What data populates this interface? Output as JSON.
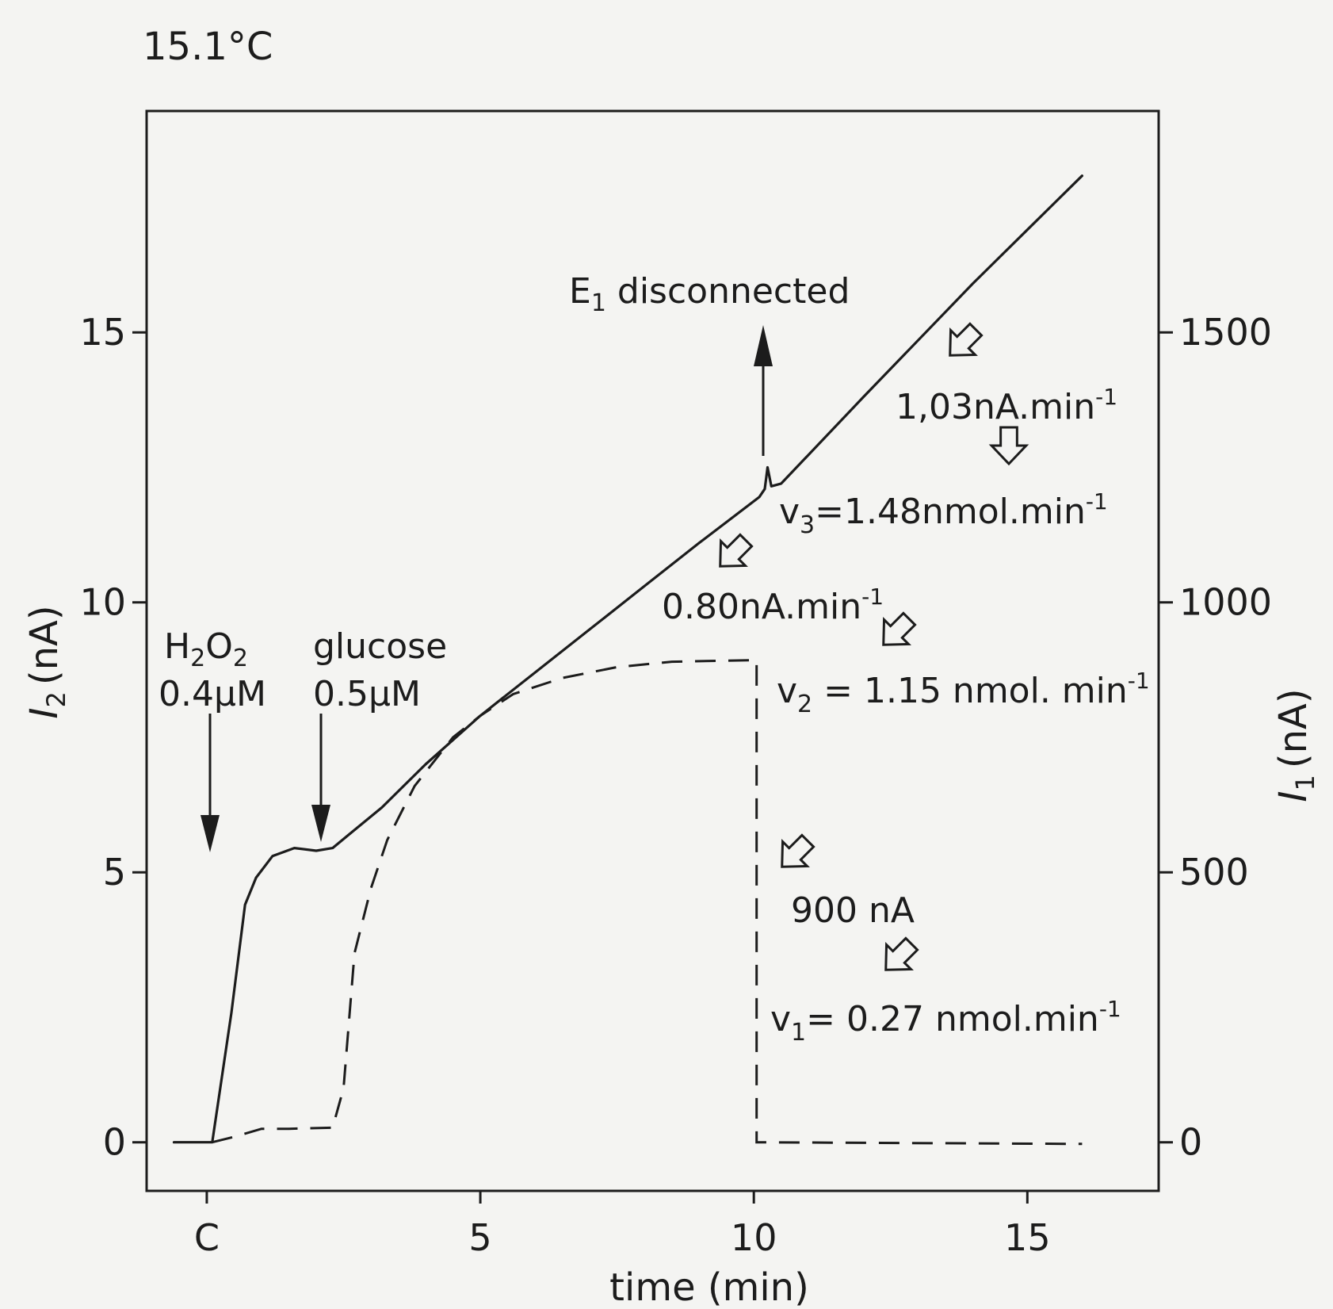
{
  "chart_data": {
    "type": "line",
    "temperature_label": "15.1°C",
    "xlabel": "time (min)",
    "ylabel_left": {
      "symbol": "I",
      "sub": "2",
      "unit": "(nA)"
    },
    "ylabel_right": {
      "symbol": "I",
      "sub": "1",
      "unit": "(nA)"
    },
    "xlim": [
      -1.1,
      17.4
    ],
    "ylim_left": [
      -0.9,
      19.1
    ],
    "ylim_right": [
      -90,
      1910
    ],
    "x_ticks": [
      {
        "value": 0,
        "label": "C"
      },
      {
        "value": 5,
        "label": "5"
      },
      {
        "value": 10,
        "label": "10"
      },
      {
        "value": 15,
        "label": "15"
      }
    ],
    "y_ticks_left": [
      0,
      5,
      10,
      15
    ],
    "y_ticks_right": [
      0,
      500,
      1000,
      1500
    ],
    "series": [
      {
        "axis": "left",
        "style": "solid",
        "points": [
          [
            -0.6,
            0
          ],
          [
            0.1,
            0
          ],
          [
            0.45,
            2.4
          ],
          [
            0.7,
            4.4
          ],
          [
            0.9,
            4.9
          ],
          [
            1.2,
            5.3
          ],
          [
            1.6,
            5.45
          ],
          [
            2.0,
            5.4
          ],
          [
            2.3,
            5.45
          ],
          [
            2.6,
            5.7
          ],
          [
            3.2,
            6.2
          ],
          [
            4.0,
            7.0
          ],
          [
            5.0,
            7.9
          ],
          [
            6.0,
            8.7
          ],
          [
            7.0,
            9.5
          ],
          [
            8.0,
            10.3
          ],
          [
            9.0,
            11.1
          ],
          [
            10.1,
            11.95
          ],
          [
            10.2,
            12.1
          ],
          [
            10.25,
            12.5
          ],
          [
            10.32,
            12.15
          ],
          [
            10.5,
            12.2
          ],
          [
            12.0,
            13.8
          ],
          [
            14.0,
            15.9
          ],
          [
            15.0,
            16.9
          ],
          [
            16.0,
            17.9
          ]
        ]
      },
      {
        "axis": "right",
        "style": "dashed",
        "points": [
          [
            0.1,
            0
          ],
          [
            0.5,
            10
          ],
          [
            1.0,
            25
          ],
          [
            1.5,
            25
          ],
          [
            2.3,
            27
          ],
          [
            2.5,
            100
          ],
          [
            2.7,
            350
          ],
          [
            3.0,
            470
          ],
          [
            3.3,
            560
          ],
          [
            3.8,
            660
          ],
          [
            4.5,
            750
          ],
          [
            5.0,
            790
          ],
          [
            5.6,
            830
          ],
          [
            6.5,
            860
          ],
          [
            7.5,
            880
          ],
          [
            8.5,
            890
          ],
          [
            10.0,
            893
          ],
          [
            10.05,
            893
          ],
          [
            10.05,
            0
          ],
          [
            16.0,
            -3
          ]
        ]
      }
    ],
    "annotations": {
      "h2o2": {
        "line1": "H",
        "sub1": "2",
        "mid": "O",
        "sub2": "2",
        "conc": "0.4μM"
      },
      "glucose": {
        "name": "glucose",
        "conc": "0.5μM"
      },
      "e1": {
        "pre": "E",
        "sub": "1",
        "post": " disconnected"
      },
      "rate_slope1": "0.80nA.min",
      "rate_slope2": "1,03nA.min",
      "sup": "-1",
      "plateau": "900 nA",
      "v1": {
        "sym": "v",
        "sub": "1",
        "text": "= 0.27 nmol.min"
      },
      "v2": {
        "sym": "v",
        "sub": "2",
        "text": " = 1.15 nmol. min"
      },
      "v3": {
        "sym": "v",
        "sub": "3",
        "text": "=1.48nmol.min"
      }
    }
  }
}
